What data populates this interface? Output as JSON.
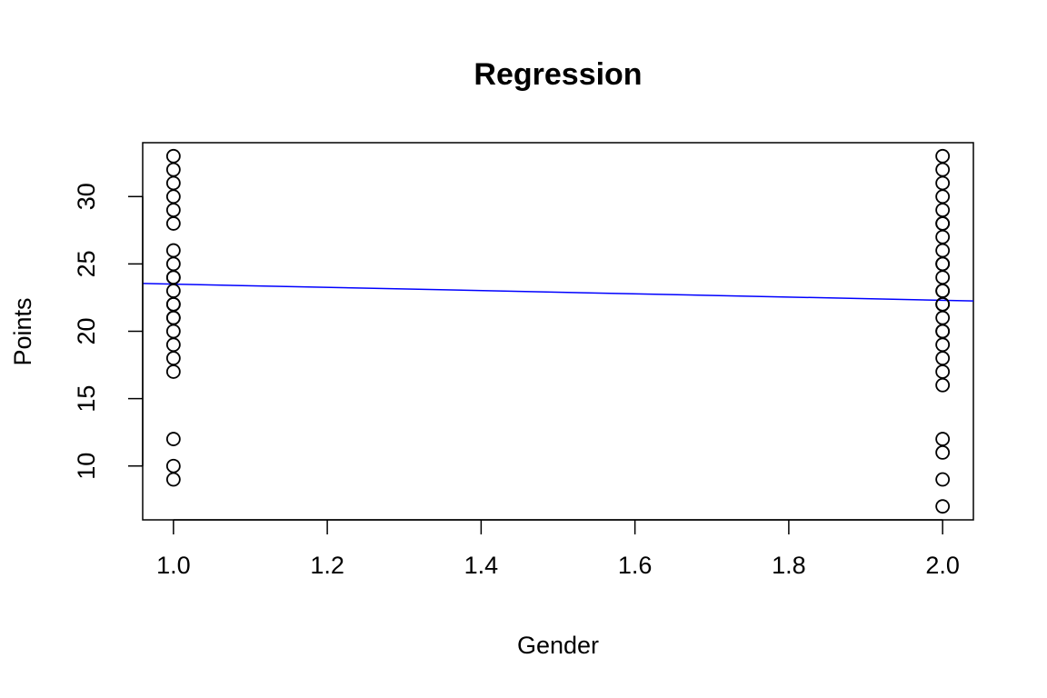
{
  "chart_data": {
    "type": "scatter",
    "title": "Regression",
    "xlabel": "Gender",
    "ylabel": "Points",
    "xlim": [
      0.96,
      2.04
    ],
    "ylim": [
      6.0,
      34.0
    ],
    "x_ticks": [
      1.0,
      1.2,
      1.4,
      1.6,
      1.8,
      2.0
    ],
    "x_tick_labels": [
      "1.0",
      "1.2",
      "1.4",
      "1.6",
      "1.8",
      "2.0"
    ],
    "y_ticks": [
      10,
      15,
      20,
      25,
      30
    ],
    "y_tick_labels": [
      "10",
      "15",
      "20",
      "25",
      "30"
    ],
    "grid": false,
    "point_style": "open-circle",
    "point_color": "#000000",
    "series": [
      {
        "x": [
          1,
          1,
          1,
          1,
          1,
          1,
          1,
          1,
          1,
          1,
          1,
          1,
          1,
          1,
          1,
          1,
          1,
          1,
          1,
          1,
          1,
          1,
          2,
          2,
          2,
          2,
          2,
          2,
          2,
          2,
          2,
          2,
          2,
          2,
          2,
          2,
          2,
          2,
          2,
          2,
          2,
          2,
          2,
          2,
          2,
          2,
          2,
          2,
          2
        ],
        "y": [
          9,
          10,
          12,
          17,
          18,
          19,
          20,
          21,
          22,
          23,
          24,
          25,
          26,
          28,
          29,
          30,
          31,
          32,
          33,
          24,
          22,
          21,
          7,
          9,
          11,
          12,
          16,
          17,
          18,
          19,
          20,
          21,
          22,
          23,
          24,
          25,
          26,
          27,
          28,
          29,
          30,
          31,
          32,
          33,
          25,
          23,
          22,
          20,
          28
        ]
      }
    ],
    "regression_line": {
      "color": "#0000ff",
      "intercept": 24.7,
      "slope": -1.2
    }
  }
}
